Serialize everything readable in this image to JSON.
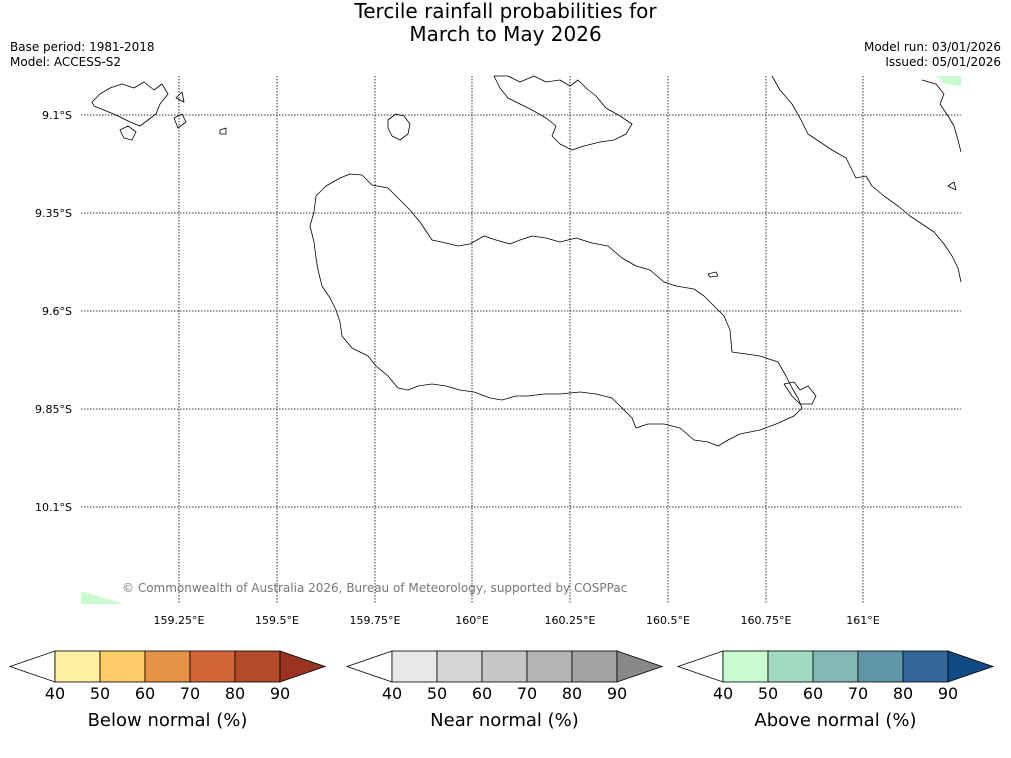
{
  "title": {
    "line1": "Tercile rainfall probabilities for",
    "line2": "March to May 2026"
  },
  "meta": {
    "base_period": "Base period: 1981-2018",
    "model": "Model: ACCESS-S2",
    "model_run": "Model run: 03/01/2026",
    "issued": "Issued: 05/01/2026"
  },
  "map": {
    "latitudes": [
      "9.1°S",
      "9.35°S",
      "9.6°S",
      "9.85°S",
      "10.1°S"
    ],
    "longitudes": [
      "159.25°E",
      "159.5°E",
      "159.75°E",
      "160°E",
      "160.25°E",
      "160.5°E",
      "160.75°E",
      "161°E"
    ],
    "copyright": "© Commonwealth of Australia 2026, Bureau of Meteorology, supported by COSPPac"
  },
  "colorbars": [
    {
      "title": "Below normal (%)",
      "ticks": [
        "40",
        "50",
        "60",
        "70",
        "80",
        "90"
      ],
      "colors": [
        "#ffffff",
        "#fef0a0",
        "#fecb66",
        "#e59447",
        "#d26636",
        "#b34b28",
        "#9a3320"
      ]
    },
    {
      "title": "Near normal (%)",
      "ticks": [
        "40",
        "50",
        "60",
        "70",
        "80",
        "90"
      ],
      "colors": [
        "#ffffff",
        "#e8e8e8",
        "#d6d6d6",
        "#c6c6c6",
        "#b4b4b4",
        "#a2a2a2",
        "#888888"
      ]
    },
    {
      "title": "Above normal (%)",
      "ticks": [
        "40",
        "50",
        "60",
        "70",
        "80",
        "90"
      ],
      "colors": [
        "#ffffff",
        "#c8fcd0",
        "#a2dac2",
        "#82b8b4",
        "#5f95a6",
        "#336699",
        "#114a85"
      ]
    }
  ]
}
